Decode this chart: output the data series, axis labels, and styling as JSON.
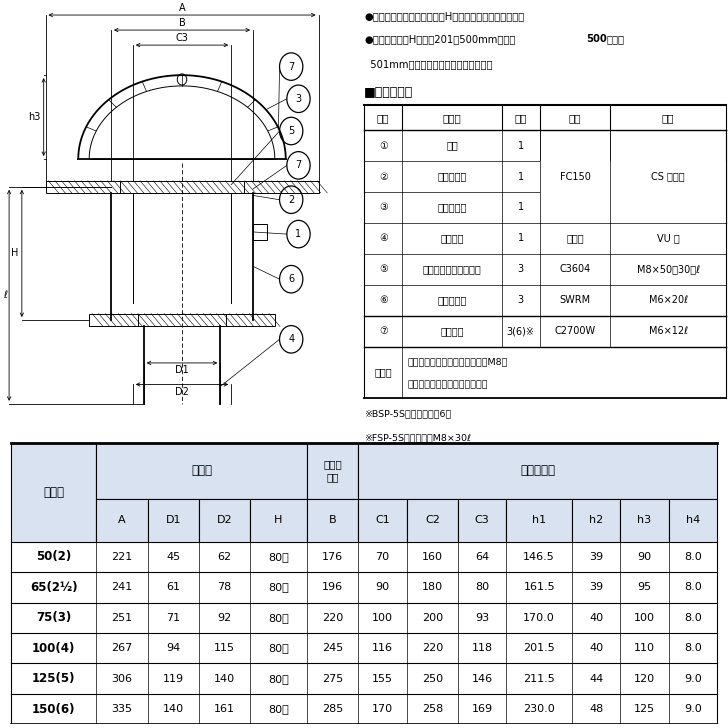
{
  "notes_line1": "ゴ注文の際はスラブ厚さ（H）寸法をご指示ください。",
  "notes_line2a": "スラブ厚さ（H）寸法201～500mmまでは",
  "notes_line2b": "500",
  "notes_line2c": "円高、",
  "notes_line3": "501mm以上は別途見積もり致します。",
  "section_title": "■部品構成表",
  "parts_table_headers": [
    "品番",
    "部品名",
    "数量",
    "材質",
    "備考"
  ],
  "parts_table_rows": [
    [
      "①",
      "本体",
      "1",
      "",
      ""
    ],
    [
      "②",
      "防水層押え",
      "1",
      "FC150",
      "CS コート"
    ],
    [
      "③",
      "ストレーナ",
      "1",
      "",
      ""
    ],
    [
      "④",
      "スリーブ",
      "1",
      "塗ビ管",
      "VU 管"
    ],
    [
      "⑤",
      "ボルト・ナット・座金",
      "3",
      "C3604",
      "M8×50（30）ℓ"
    ],
    [
      "⑥",
      "六角ボルト",
      "3",
      "SWRM",
      "M6×20ℓ"
    ],
    [
      "⑦",
      "止めビス",
      "3(6)※",
      "C2700W",
      "M6×12ℓ"
    ]
  ],
  "accessories_label": "付属品",
  "accessories_line1": "位置決め座・スタッドボルト（M8）",
  "accessories_line2": "蝶ナット・押え板・保護カバー",
  "footnote1": "※BSP-5Sの止めビスは6個",
  "footnote2": "※FSP-5SのボルトはM8×30ℓ",
  "dim_table_rows": [
    [
      "50(2)",
      "221",
      "45",
      "62",
      "80～",
      "176",
      "70",
      "160",
      "64",
      "146.5",
      "39",
      "90",
      "8.0"
    ],
    [
      "65(2½)",
      "241",
      "61",
      "78",
      "80～",
      "196",
      "90",
      "180",
      "80",
      "161.5",
      "39",
      "95",
      "8.0"
    ],
    [
      "75(3)",
      "251",
      "71",
      "92",
      "80～",
      "220",
      "100",
      "200",
      "93",
      "170.0",
      "40",
      "100",
      "8.0"
    ],
    [
      "100(4)",
      "267",
      "94",
      "115",
      "80～",
      "245",
      "116",
      "220",
      "118",
      "201.5",
      "40",
      "110",
      "8.0"
    ],
    [
      "125(5)",
      "306",
      "119",
      "140",
      "80～",
      "275",
      "155",
      "250",
      "146",
      "211.5",
      "44",
      "120",
      "9.0"
    ],
    [
      "150(6)",
      "335",
      "140",
      "161",
      "80～",
      "285",
      "170",
      "258",
      "169",
      "230.0",
      "48",
      "125",
      "9.0"
    ]
  ],
  "bg_color": "#ffffff",
  "table_bg_light": "#d9e2f0",
  "dim_col_ratios": [
    1.5,
    0.9,
    0.9,
    0.9,
    1.0,
    0.9,
    0.85,
    0.9,
    0.85,
    1.15,
    0.85,
    0.85,
    0.85
  ]
}
